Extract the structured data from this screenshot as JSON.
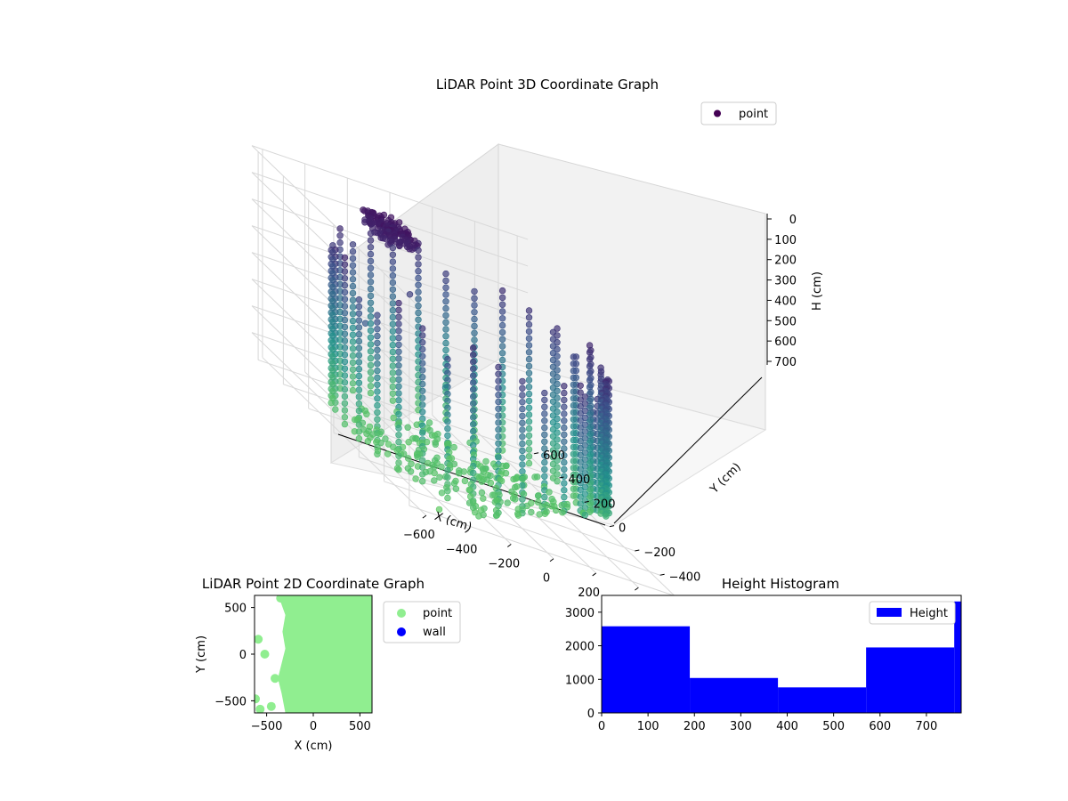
{
  "chart_data": [
    {
      "id": "scatter3d",
      "type": "scatter",
      "title": "LiDAR Point 3D Coordinate Graph",
      "xlabel": "X (cm)",
      "ylabel": "Y (cm)",
      "zlabel": "H (cm)",
      "xlim": [
        -650,
        650
      ],
      "ylim": [
        -650,
        650
      ],
      "zlim": [
        780,
        0
      ],
      "x_ticks": [
        "−600",
        "−400",
        "−200",
        "0",
        "200",
        "400",
        "600"
      ],
      "y_ticks": [
        "−600",
        "−400",
        "−200",
        "0",
        "200",
        "400",
        "600"
      ],
      "z_ticks": [
        "0",
        "100",
        "200",
        "300",
        "400",
        "500",
        "600",
        "700"
      ],
      "legend": [
        "point"
      ],
      "legend_position": "upper right",
      "colormap": [
        "#440154",
        "#3b528b",
        "#21918c",
        "#5ec962"
      ],
      "grid": true
    },
    {
      "id": "scatter2d",
      "type": "scatter",
      "title": "LiDAR Point 2D Coordinate Graph",
      "xlabel": "X (cm)",
      "ylabel": "Y (cm)",
      "xlim": [
        -630,
        630
      ],
      "ylim": [
        -630,
        630
      ],
      "x_ticks": [
        "−500",
        "0",
        "500"
      ],
      "y_ticks": [
        "500",
        "0",
        "−500"
      ],
      "series": [
        {
          "name": "point",
          "color": "#90ee90"
        },
        {
          "name": "wall",
          "color": "#0000ff"
        }
      ],
      "legend_position": "outside right"
    },
    {
      "id": "histogram",
      "type": "bar",
      "title": "Height Histogram",
      "bins": [
        [
          0,
          190
        ],
        [
          190,
          380
        ],
        [
          380,
          570
        ],
        [
          570,
          760
        ],
        [
          760,
          775
        ]
      ],
      "values": [
        2580,
        1040,
        760,
        1950,
        3320
      ],
      "xlim": [
        0,
        775
      ],
      "ylim": [
        0,
        3500
      ],
      "x_ticks": [
        "0",
        "100",
        "200",
        "300",
        "400",
        "500",
        "600",
        "700"
      ],
      "y_ticks": [
        "0",
        "1000",
        "2000",
        "3000"
      ],
      "series": [
        {
          "name": "Height",
          "color": "#0000ff"
        }
      ],
      "legend_position": "upper right"
    }
  ]
}
